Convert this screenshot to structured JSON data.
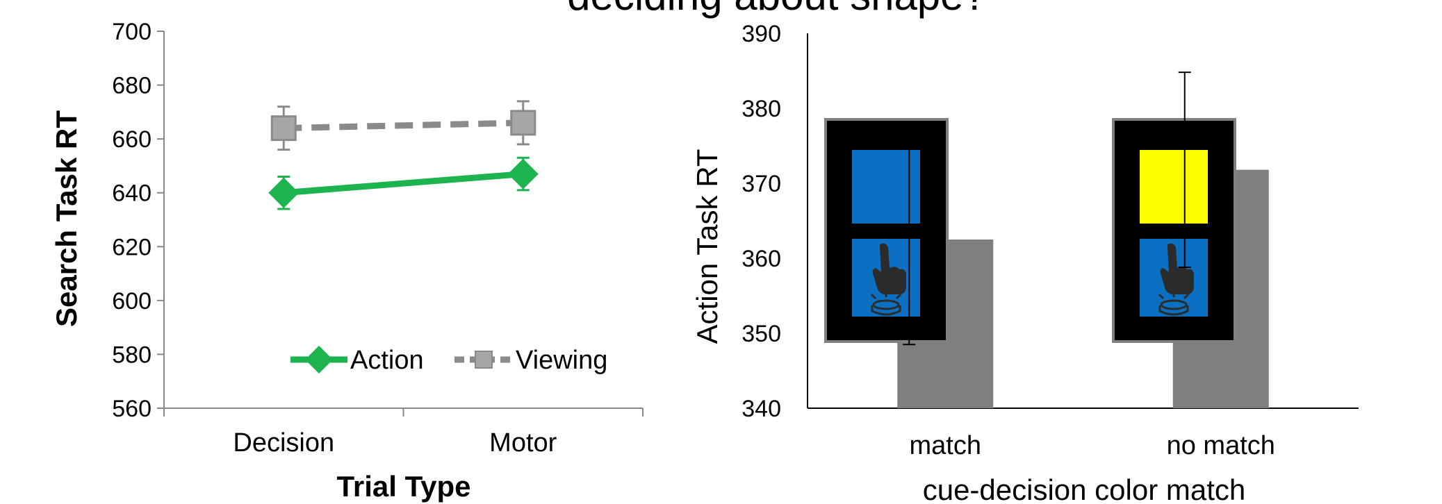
{
  "header": {
    "partial_title": "deciding about shape?"
  },
  "chart_data": [
    {
      "type": "line",
      "categories": [
        "Decision",
        "Motor"
      ],
      "series": [
        {
          "name": "Action",
          "values": [
            640,
            647
          ],
          "err": [
            6,
            6
          ],
          "color": "#1db34f",
          "style": "solid",
          "marker": "diamond"
        },
        {
          "name": "Viewing",
          "values": [
            664,
            666
          ],
          "err": [
            8,
            8
          ],
          "color": "#8a8a8a",
          "style": "dashed",
          "marker": "square"
        }
      ],
      "title": "",
      "xlabel": "Trial Type",
      "ylabel": "Search Task RT",
      "ylim": [
        560,
        700
      ],
      "yticks": [
        "560",
        "580",
        "600",
        "620",
        "640",
        "660",
        "680",
        "700"
      ],
      "legend_position": "bottom-right",
      "grid": false
    },
    {
      "type": "bar",
      "categories": [
        "match",
        "no match"
      ],
      "values": [
        362.5,
        371.8
      ],
      "err": [
        14,
        13
      ],
      "color": "#7f7f7f",
      "title": "",
      "xlabel": "cue-decision color match",
      "ylabel": "Action Task RT",
      "ylim": [
        340,
        390
      ],
      "yticks": [
        "340",
        "350",
        "360",
        "370",
        "380",
        "390"
      ],
      "grid": false,
      "insets": [
        {
          "top_square_color": "#0b6fc2",
          "bottom_square_color": "#0b6fc2",
          "icon": "finger-pressing-button-icon"
        },
        {
          "top_square_color": "#ffff00",
          "bottom_square_color": "#0b6fc2",
          "icon": "finger-pressing-button-icon"
        }
      ]
    }
  ]
}
